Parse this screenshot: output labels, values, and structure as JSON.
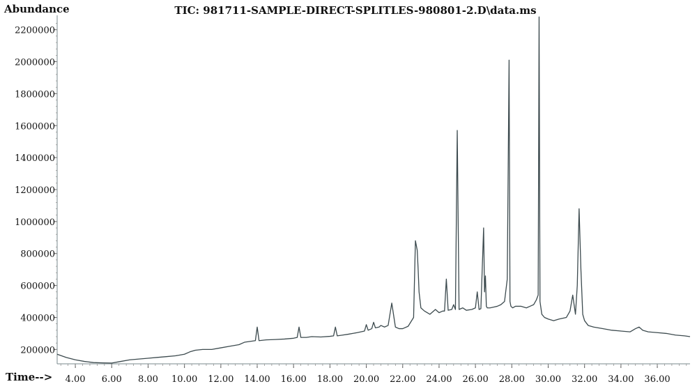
{
  "chart_data": {
    "type": "line",
    "title": "TIC: 981711-SAMPLE-DIRECT-SPLITLES-980801-2.D\\data.ms",
    "ylabel": "Abundance",
    "xlabel": "Time-->",
    "xlim": [
      3.0,
      37.8
    ],
    "ylim": [
      110000,
      2290000
    ],
    "x_ticks": [
      4.0,
      6.0,
      8.0,
      10.0,
      12.0,
      14.0,
      16.0,
      18.0,
      20.0,
      22.0,
      24.0,
      26.0,
      28.0,
      30.0,
      32.0,
      34.0,
      36.0
    ],
    "x_tick_labels": [
      "4.00",
      "6.00",
      "8.00",
      "10.00",
      "12.00",
      "14.00",
      "16.00",
      "18.00",
      "20.00",
      "22.00",
      "24.00",
      "26.00",
      "28.00",
      "30.00",
      "32.00",
      "34.00",
      "36.00"
    ],
    "y_ticks": [
      200000,
      400000,
      600000,
      800000,
      1000000,
      1200000,
      1400000,
      1600000,
      1800000,
      2000000,
      2200000
    ],
    "y_tick_labels": [
      "200000",
      "400000",
      "600000",
      "800000",
      "1000000",
      "1200000",
      "1400000",
      "1600000",
      "1800000",
      "2000000",
      "2200000"
    ],
    "grid": false,
    "line_color": "#3c4a4e",
    "series": [
      {
        "x": [
          3.0,
          3.5,
          4.0,
          4.5,
          5.0,
          5.5,
          6.0,
          6.5,
          7.0,
          7.5,
          8.0,
          8.5,
          9.0,
          9.5,
          10.0,
          10.3,
          10.6,
          11.0,
          11.5,
          12.0,
          12.5,
          13.0,
          13.3,
          13.6,
          13.9,
          14.0,
          14.1,
          14.5,
          15.0,
          15.5,
          16.0,
          16.2,
          16.3,
          16.4,
          16.7,
          17.0,
          17.5,
          18.0,
          18.2,
          18.3,
          18.4,
          18.7,
          19.0,
          19.5,
          19.9,
          20.0,
          20.1,
          20.3,
          20.4,
          20.5,
          20.7,
          20.8,
          21.0,
          21.2,
          21.4,
          21.6,
          21.8,
          22.0,
          22.3,
          22.6,
          22.7,
          22.8,
          22.85,
          22.9,
          23.0,
          23.2,
          23.5,
          23.8,
          24.0,
          24.2,
          24.3,
          24.4,
          24.5,
          24.7,
          24.8,
          24.9,
          25.0,
          25.1,
          25.3,
          25.5,
          25.8,
          26.0,
          26.1,
          26.2,
          26.3,
          26.45,
          26.5,
          26.55,
          26.6,
          26.65,
          26.8,
          27.0,
          27.2,
          27.4,
          27.6,
          27.75,
          27.85,
          27.9,
          27.95,
          28.05,
          28.2,
          28.5,
          28.8,
          29.0,
          29.2,
          29.35,
          29.45,
          29.5,
          29.55,
          29.65,
          29.8,
          30.0,
          30.3,
          30.6,
          31.0,
          31.2,
          31.35,
          31.5,
          31.6,
          31.7,
          31.8,
          31.9,
          32.0,
          32.2,
          32.5,
          33.0,
          33.5,
          34.0,
          34.5,
          34.8,
          35.0,
          35.2,
          35.5,
          36.0,
          36.5,
          37.0,
          37.5,
          37.8
        ],
        "y": [
          170000,
          150000,
          135000,
          125000,
          118000,
          116000,
          115000,
          125000,
          135000,
          140000,
          145000,
          150000,
          155000,
          160000,
          170000,
          185000,
          195000,
          200000,
          200000,
          210000,
          220000,
          230000,
          245000,
          250000,
          255000,
          340000,
          255000,
          260000,
          262000,
          265000,
          270000,
          275000,
          340000,
          275000,
          275000,
          280000,
          278000,
          282000,
          285000,
          340000,
          285000,
          290000,
          295000,
          305000,
          315000,
          355000,
          320000,
          330000,
          370000,
          335000,
          340000,
          350000,
          340000,
          350000,
          490000,
          340000,
          330000,
          330000,
          345000,
          400000,
          880000,
          820000,
          700000,
          560000,
          460000,
          440000,
          420000,
          450000,
          430000,
          440000,
          440000,
          640000,
          445000,
          450000,
          480000,
          450000,
          1570000,
          450000,
          460000,
          445000,
          450000,
          460000,
          560000,
          450000,
          455000,
          960000,
          560000,
          660000,
          470000,
          460000,
          460000,
          465000,
          470000,
          480000,
          500000,
          640000,
          2010000,
          500000,
          470000,
          460000,
          470000,
          470000,
          460000,
          470000,
          480000,
          510000,
          540000,
          2280000,
          500000,
          420000,
          400000,
          390000,
          380000,
          390000,
          400000,
          440000,
          540000,
          420000,
          600000,
          1080000,
          700000,
          420000,
          380000,
          350000,
          340000,
          330000,
          320000,
          315000,
          310000,
          330000,
          340000,
          320000,
          310000,
          305000,
          300000,
          290000,
          285000,
          280000
        ]
      }
    ]
  }
}
